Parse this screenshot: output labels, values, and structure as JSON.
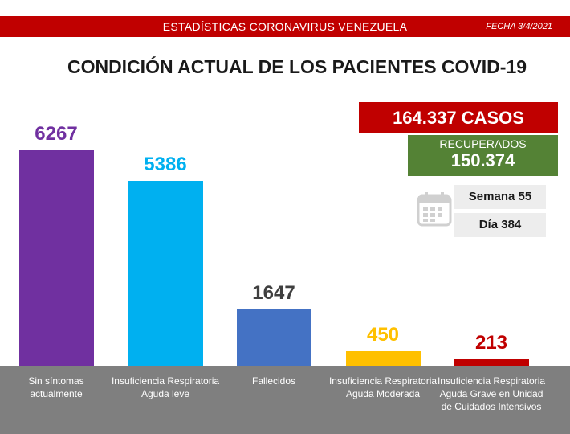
{
  "chart_data": {
    "type": "bar",
    "header": "ESTADÍSTICAS CORONAVIRUS VENEZUELA",
    "date": "FECHA 3/4/2021",
    "title": "CONDICIÓN ACTUAL DE LOS PACIENTES COVID-19",
    "cases": "164.337 CASOS",
    "recovered_label": "RECUPERADOS",
    "recovered": "150.374",
    "week": "Semana 55",
    "day": "Día 384",
    "categories": [
      "Sin síntomas actualmente",
      "Insuficiencia Respiratoria Aguda leve",
      "Fallecidos",
      "Insuficiencia Respiratoria Aguda Moderada",
      "Insuficiencia Respiratoria Aguda Grave en Unidad de Cuidados Intensivos"
    ],
    "values": [
      6267,
      5386,
      1647,
      450,
      213
    ],
    "colors": [
      "#7030a0",
      "#00b0f0",
      "#4472c4",
      "#ffc000",
      "#c00000"
    ],
    "value_label_colors": [
      "#7030a0",
      "#00b0f0",
      "#404040",
      "#ffc000",
      "#c00000"
    ]
  }
}
